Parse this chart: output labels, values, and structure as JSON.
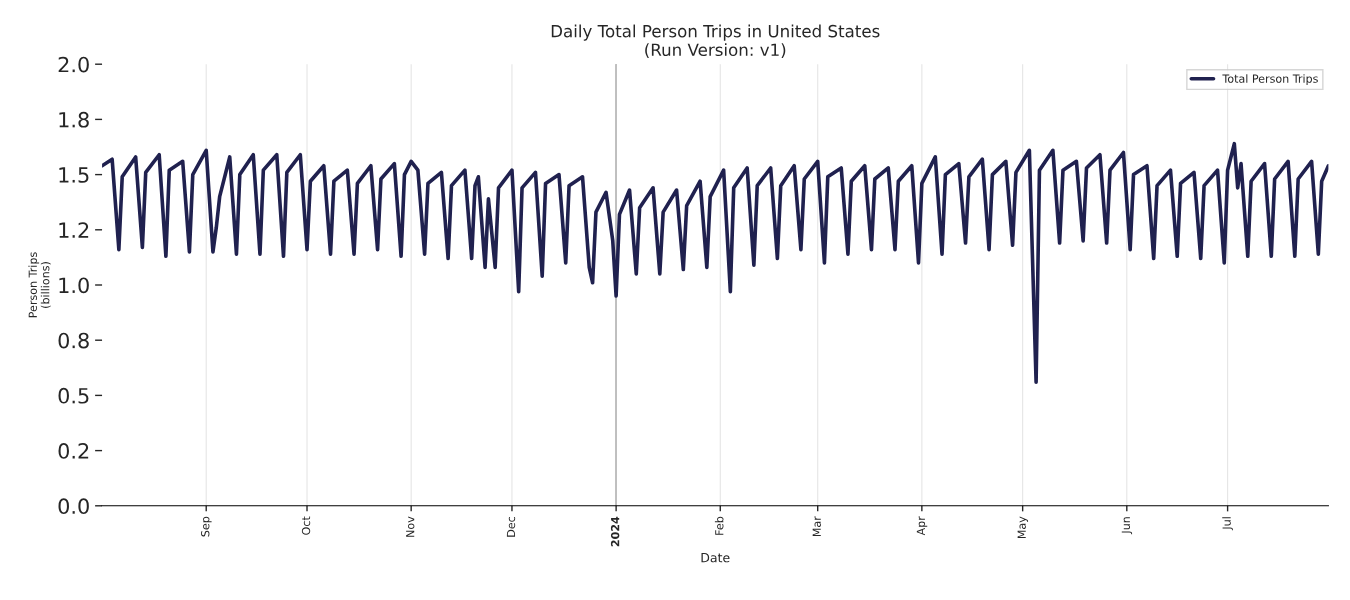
{
  "chart_data": {
    "type": "line",
    "title": "Daily Total Person Trips in United States\n(Run Version: v1)",
    "xlabel": "Date",
    "ylabel": "Person Trips\n(billions)",
    "x": [
      "2023-08-01",
      "2023-08-04",
      "2023-08-06",
      "2023-08-07",
      "2023-08-11",
      "2023-08-13",
      "2023-08-14",
      "2023-08-18",
      "2023-08-20",
      "2023-08-21",
      "2023-08-25",
      "2023-08-27",
      "2023-08-28",
      "2023-09-01",
      "2023-09-03",
      "2023-09-04",
      "2023-09-05",
      "2023-09-08",
      "2023-09-10",
      "2023-09-11",
      "2023-09-15",
      "2023-09-17",
      "2023-09-18",
      "2023-09-22",
      "2023-09-24",
      "2023-09-25",
      "2023-09-29",
      "2023-10-01",
      "2023-10-02",
      "2023-10-06",
      "2023-10-08",
      "2023-10-09",
      "2023-10-13",
      "2023-10-15",
      "2023-10-16",
      "2023-10-20",
      "2023-10-22",
      "2023-10-23",
      "2023-10-27",
      "2023-10-29",
      "2023-10-30",
      "2023-11-01",
      "2023-11-03",
      "2023-11-05",
      "2023-11-06",
      "2023-11-10",
      "2023-11-12",
      "2023-11-13",
      "2023-11-17",
      "2023-11-19",
      "2023-11-20",
      "2023-11-21",
      "2023-11-23",
      "2023-11-24",
      "2023-11-26",
      "2023-11-27",
      "2023-12-01",
      "2023-12-03",
      "2023-12-04",
      "2023-12-08",
      "2023-12-10",
      "2023-12-11",
      "2023-12-15",
      "2023-12-17",
      "2023-12-18",
      "2023-12-22",
      "2023-12-24",
      "2023-12-25",
      "2023-12-26",
      "2023-12-29",
      "2023-12-31",
      "2024-01-01",
      "2024-01-02",
      "2024-01-05",
      "2024-01-07",
      "2024-01-08",
      "2024-01-12",
      "2024-01-14",
      "2024-01-15",
      "2024-01-19",
      "2024-01-21",
      "2024-01-22",
      "2024-01-26",
      "2024-01-28",
      "2024-01-29",
      "2024-02-02",
      "2024-02-04",
      "2024-02-05",
      "2024-02-09",
      "2024-02-11",
      "2024-02-12",
      "2024-02-16",
      "2024-02-18",
      "2024-02-19",
      "2024-02-23",
      "2024-02-25",
      "2024-02-26",
      "2024-03-01",
      "2024-03-03",
      "2024-03-04",
      "2024-03-08",
      "2024-03-10",
      "2024-03-11",
      "2024-03-15",
      "2024-03-17",
      "2024-03-18",
      "2024-03-22",
      "2024-03-24",
      "2024-03-25",
      "2024-03-29",
      "2024-03-31",
      "2024-04-01",
      "2024-04-05",
      "2024-04-07",
      "2024-04-08",
      "2024-04-12",
      "2024-04-14",
      "2024-04-15",
      "2024-04-19",
      "2024-04-21",
      "2024-04-22",
      "2024-04-26",
      "2024-04-28",
      "2024-04-29",
      "2024-05-03",
      "2024-05-05",
      "2024-05-06",
      "2024-05-10",
      "2024-05-12",
      "2024-05-13",
      "2024-05-17",
      "2024-05-19",
      "2024-05-20",
      "2024-05-24",
      "2024-05-26",
      "2024-05-27",
      "2024-05-31",
      "2024-06-02",
      "2024-06-03",
      "2024-06-07",
      "2024-06-09",
      "2024-06-10",
      "2024-06-14",
      "2024-06-16",
      "2024-06-17",
      "2024-06-21",
      "2024-06-23",
      "2024-06-24",
      "2024-06-28",
      "2024-06-30",
      "2024-07-01",
      "2024-07-03",
      "2024-07-04",
      "2024-07-05",
      "2024-07-07",
      "2024-07-08",
      "2024-07-12",
      "2024-07-14",
      "2024-07-15",
      "2024-07-19",
      "2024-07-21",
      "2024-07-22",
      "2024-07-26",
      "2024-07-28",
      "2024-07-29",
      "2024-07-31"
    ],
    "series": [
      {
        "name": "Total Person Trips",
        "color": "#20214f",
        "values": [
          1.54,
          1.57,
          1.16,
          1.49,
          1.58,
          1.17,
          1.51,
          1.59,
          1.13,
          1.52,
          1.56,
          1.15,
          1.5,
          1.61,
          1.15,
          1.26,
          1.4,
          1.58,
          1.14,
          1.5,
          1.59,
          1.14,
          1.52,
          1.59,
          1.13,
          1.51,
          1.59,
          1.16,
          1.47,
          1.54,
          1.14,
          1.47,
          1.52,
          1.14,
          1.46,
          1.54,
          1.16,
          1.48,
          1.55,
          1.13,
          1.5,
          1.56,
          1.52,
          1.14,
          1.46,
          1.51,
          1.12,
          1.45,
          1.52,
          1.12,
          1.45,
          1.49,
          1.08,
          1.39,
          1.08,
          1.44,
          1.52,
          0.97,
          1.44,
          1.51,
          1.04,
          1.46,
          1.5,
          1.1,
          1.45,
          1.49,
          1.08,
          1.01,
          1.33,
          1.42,
          1.2,
          0.95,
          1.32,
          1.43,
          1.05,
          1.35,
          1.44,
          1.05,
          1.33,
          1.43,
          1.07,
          1.36,
          1.47,
          1.08,
          1.4,
          1.52,
          0.97,
          1.44,
          1.53,
          1.09,
          1.45,
          1.53,
          1.12,
          1.45,
          1.54,
          1.16,
          1.48,
          1.56,
          1.1,
          1.49,
          1.53,
          1.14,
          1.47,
          1.54,
          1.16,
          1.48,
          1.53,
          1.16,
          1.47,
          1.54,
          1.1,
          1.46,
          1.58,
          1.14,
          1.5,
          1.55,
          1.19,
          1.49,
          1.57,
          1.16,
          1.5,
          1.56,
          1.18,
          1.51,
          1.61,
          0.56,
          1.52,
          1.61,
          1.19,
          1.52,
          1.56,
          1.2,
          1.53,
          1.59,
          1.19,
          1.52,
          1.6,
          1.16,
          1.5,
          1.54,
          1.12,
          1.45,
          1.52,
          1.13,
          1.46,
          1.51,
          1.12,
          1.45,
          1.52,
          1.1,
          1.52,
          1.64,
          1.44,
          1.55,
          1.13,
          1.47,
          1.55,
          1.13,
          1.48,
          1.56,
          1.13,
          1.48,
          1.56,
          1.14,
          1.47,
          1.54
        ]
      }
    ],
    "xlim": [
      "2023-08-01",
      "2024-07-31"
    ],
    "xticks": [
      {
        "value": "2023-09-01",
        "label": "Sep"
      },
      {
        "value": "2023-10-01",
        "label": "Oct"
      },
      {
        "value": "2023-11-01",
        "label": "Nov"
      },
      {
        "value": "2023-12-01",
        "label": "Dec"
      },
      {
        "value": "2024-01-01",
        "label": "2024"
      },
      {
        "value": "2024-02-01",
        "label": "Feb"
      },
      {
        "value": "2024-03-01",
        "label": "Mar"
      },
      {
        "value": "2024-04-01",
        "label": "Apr"
      },
      {
        "value": "2024-05-01",
        "label": "May"
      },
      {
        "value": "2024-06-01",
        "label": "Jun"
      },
      {
        "value": "2024-07-01",
        "label": "Jul"
      }
    ],
    "ylim": [
      0,
      2.0
    ],
    "yticks": [
      {
        "value": 0,
        "label": "0.0"
      },
      {
        "value": 0.25,
        "label": "0.2"
      },
      {
        "value": 0.5,
        "label": "0.5"
      },
      {
        "value": 0.75,
        "label": "0.8"
      },
      {
        "value": 1.0,
        "label": "1.0"
      },
      {
        "value": 1.25,
        "label": "1.2"
      },
      {
        "value": 1.5,
        "label": "1.5"
      },
      {
        "value": 1.75,
        "label": "1.8"
      },
      {
        "value": 2.0,
        "label": "2.0"
      }
    ],
    "ref_lines": [
      {
        "axis": "x",
        "value": "2024-01-01",
        "color": "#333333"
      }
    ],
    "grid": "x",
    "legend": "top right"
  }
}
